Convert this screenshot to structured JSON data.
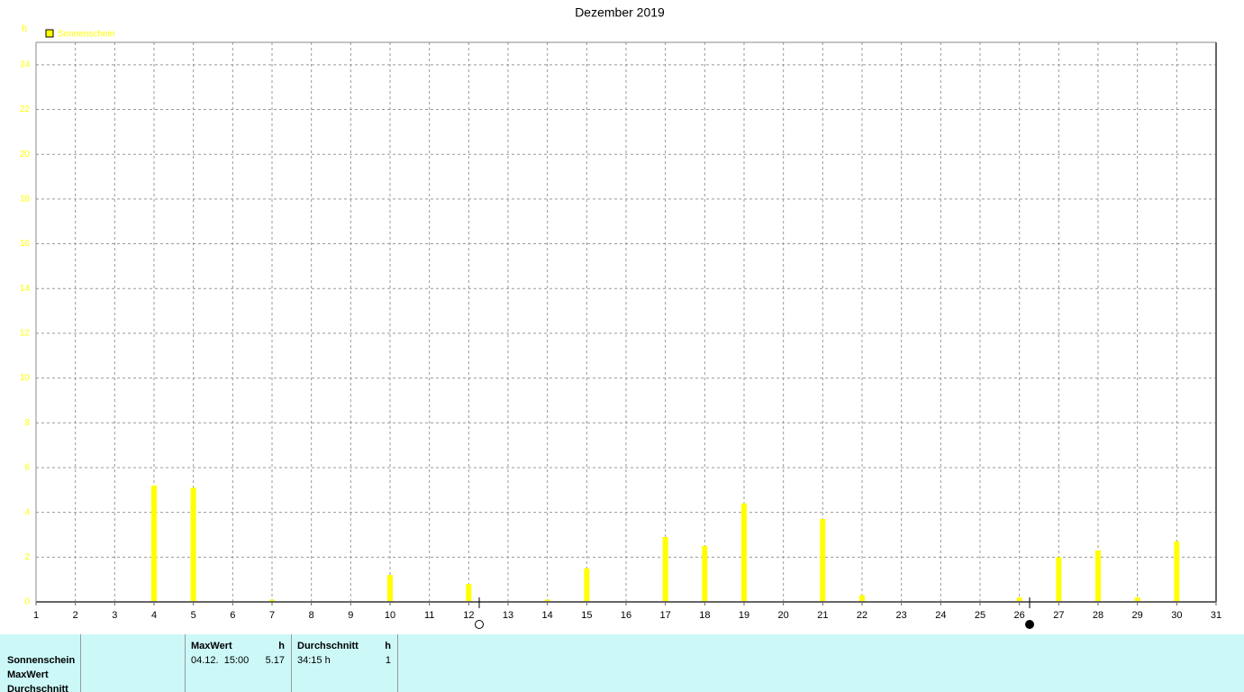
{
  "chart_data": {
    "type": "bar",
    "title": "Dezember 2019",
    "y_label": "h",
    "x": [
      2,
      3,
      4,
      5,
      6,
      7,
      8,
      9,
      10,
      11,
      12,
      13,
      14,
      15,
      16,
      17,
      18,
      19,
      20,
      21,
      22,
      23,
      24,
      25,
      26,
      27,
      28,
      29,
      30
    ],
    "series": [
      {
        "name": "Sonnenschein",
        "color": "#ffff00",
        "values": [
          0,
          0,
          5.2,
          5.1,
          0,
          0.1,
          0,
          0,
          1.2,
          0,
          0.8,
          0,
          0.1,
          1.5,
          0,
          2.9,
          2.5,
          4.4,
          0,
          3.7,
          0.3,
          0,
          0,
          0,
          0.2,
          2.0,
          2.3,
          0.2,
          2.7
        ]
      }
    ],
    "xlim": [
      1,
      31
    ],
    "xticks": [
      1,
      2,
      3,
      4,
      5,
      6,
      7,
      8,
      9,
      10,
      11,
      12,
      13,
      14,
      15,
      16,
      17,
      18,
      19,
      20,
      21,
      22,
      23,
      24,
      25,
      26,
      27,
      28,
      29,
      30,
      31
    ],
    "ylim": [
      0,
      25
    ],
    "yticks": [
      0,
      2,
      4,
      6,
      8,
      10,
      12,
      14,
      16,
      18,
      20,
      22,
      24
    ],
    "grid": true
  },
  "table": {
    "row_labels": [
      "Sonnenschein",
      "MaxWert",
      "Durchschnitt"
    ],
    "columns": [
      {
        "header": "MaxWert",
        "unit": "h",
        "cells": [
          "04.12.  15:00",
          "5.17"
        ]
      },
      {
        "header": "Durchschnitt",
        "unit": "h",
        "cells": [
          "34:15 h",
          "1"
        ]
      }
    ]
  }
}
